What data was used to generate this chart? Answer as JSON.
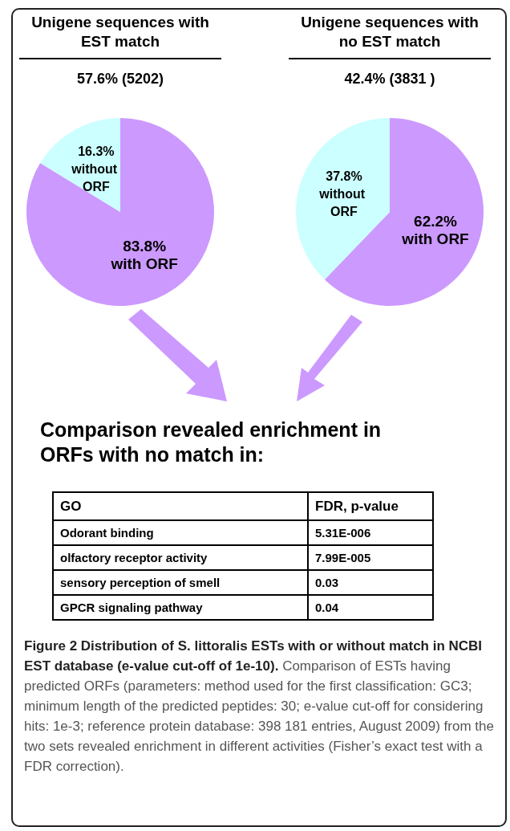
{
  "chart_data": [
    {
      "type": "pie",
      "title": "Unigene sequences with EST match",
      "subtitle": "57.6% (5202)",
      "categories": [
        "with ORF",
        "without ORF"
      ],
      "values": [
        83.8,
        16.3
      ],
      "value_labels": [
        "83.8%",
        "16.3%"
      ],
      "colors": [
        "#cc99ff",
        "#ccffff"
      ]
    },
    {
      "type": "pie",
      "title": "Unigene sequences with no EST match",
      "subtitle": "42.4% (3831 )",
      "categories": [
        "with ORF",
        "without ORF"
      ],
      "values": [
        62.2,
        37.8
      ],
      "value_labels": [
        "62.2%",
        "37.8%"
      ],
      "colors": [
        "#cc99ff",
        "#ccffff"
      ]
    },
    {
      "type": "other",
      "title": "Comparison revealed enrichment in ORFs with no match in:",
      "xlabel": "GO",
      "ylabel": "FDR, p-value",
      "categories": [
        "Odorant binding",
        "olfactory receptor activity",
        "sensory perception of smell",
        "GPCR signaling pathway"
      ],
      "value_labels": [
        "5.31E-006",
        "7.99E-005",
        "0.03",
        "0.04"
      ],
      "annotations": [
        "Figure 2 Distribution of S. littoralis ESTs with or without match in NCBI EST database (e-value cut-off of 1e-10).",
        "Comparison of ESTs having predicted ORFs (parameters: method used for the first classification: GC3; minimum length of the predicted peptides: 30; e-value cut-off for considering hits: 1e-3; reference protein database: 398 181 entries, August 2009) from the two sets revealed enrichment in different activities (Fisher’s exact test with a FDR correction)."
      ]
    }
  ]
}
